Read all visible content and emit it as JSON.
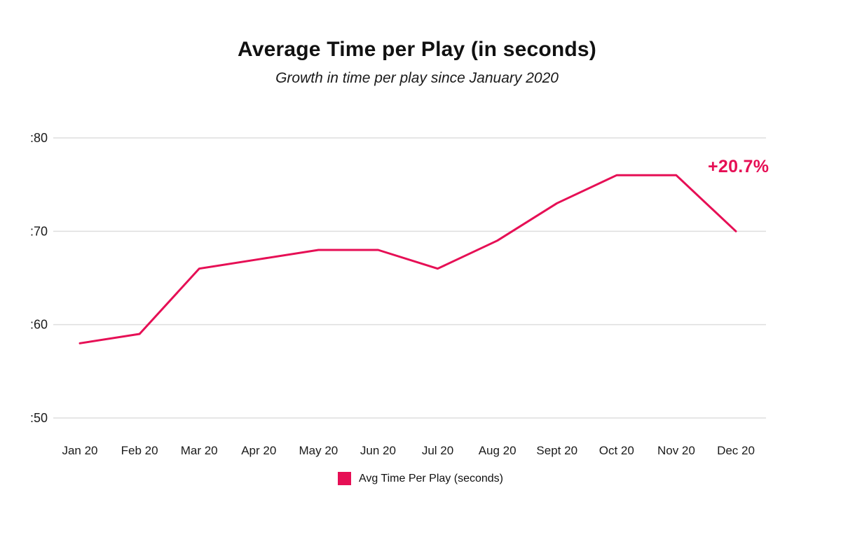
{
  "header": {
    "title": "Average Time per Play (in seconds)",
    "subtitle": "Growth in time per play since January 2020"
  },
  "colors": {
    "accent": "#e60f55",
    "gridline": "#dedede",
    "text": "#1a1a1a"
  },
  "legend": {
    "label": "Avg Time Per Play (seconds)"
  },
  "chart_data": {
    "type": "line",
    "title": "Average Time per Play (in seconds)",
    "subtitle": "Growth in time per play since January 2020",
    "categories": [
      "Jan 20",
      "Feb 20",
      "Mar 20",
      "Apr 20",
      "May 20",
      "Jun 20",
      "Jul 20",
      "Aug 20",
      "Sept 20",
      "Oct 20",
      "Nov 20",
      "Dec 20"
    ],
    "series": [
      {
        "name": "Avg Time Per Play (seconds)",
        "color": "#e60f55",
        "values": [
          58,
          59,
          66,
          67,
          68,
          68,
          66,
          69,
          73,
          76,
          76,
          70
        ]
      }
    ],
    "y_tick_values": [
      50,
      60,
      70,
      80
    ],
    "y_tick_labels": [
      ":50",
      ":60",
      ":70",
      ":80"
    ],
    "ylim": [
      50,
      80
    ],
    "grid": "horizontal",
    "legend_position": "bottom",
    "annotation": {
      "text": "+20.7%",
      "at_category": "Dec 20"
    }
  }
}
